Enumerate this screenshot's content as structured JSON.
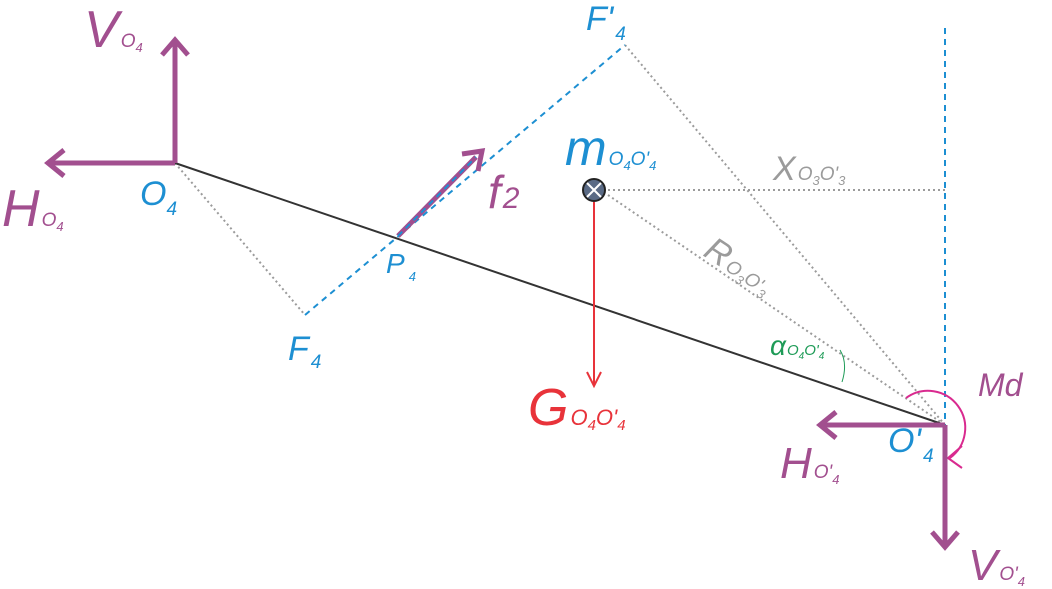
{
  "labels": {
    "V_O4": {
      "main": "V",
      "sub": "O",
      "subsub": "4"
    },
    "H_O4": {
      "main": "H",
      "sub": "O",
      "subsub": "4"
    },
    "O4": {
      "main": "O",
      "sub": "4"
    },
    "F4": {
      "main": "F",
      "sub": "4"
    },
    "F4_prime": {
      "main": "F'",
      "sub": "4"
    },
    "P4": {
      "main": "P",
      "sub": "4"
    },
    "f2": {
      "main": "f",
      "sub": "2"
    },
    "m": {
      "main": "m",
      "sub": "O",
      "subsub1": "4",
      "sub2": "O'",
      "subsub2": "4"
    },
    "X": {
      "main": "X",
      "sub": "O",
      "subsub1": "3",
      "sub2": "O'",
      "subsub2": "3"
    },
    "R": {
      "main": "R",
      "sub": "O",
      "subsub1": "3",
      "sub2": "O'",
      "subsub2": "3"
    },
    "alpha": {
      "main": "α",
      "sub": "O",
      "subsub1": "4",
      "sub2": "O'",
      "subsub2": "4"
    },
    "G": {
      "main": "G",
      "sub": "O",
      "subsub1": "4",
      "sub2": "O'",
      "subsub2": "4"
    },
    "Md": {
      "main": "Md"
    },
    "O4_prime": {
      "main": "O'",
      "sub": "4"
    },
    "H_O4p": {
      "main": "H",
      "sub": "O'",
      "subsub": "4"
    },
    "V_O4p": {
      "main": "V",
      "sub": "O'",
      "subsub": "4"
    }
  },
  "colors": {
    "reaction": "#a24f8f",
    "geometry": "#1d8fd2",
    "construction": "#9b9b9b",
    "gravity": "#e8333a",
    "angle": "#1e9b57",
    "moment": "#d92a8f",
    "bar": "#333333"
  },
  "icons": {
    "mass_center": "cross-circle-icon"
  }
}
